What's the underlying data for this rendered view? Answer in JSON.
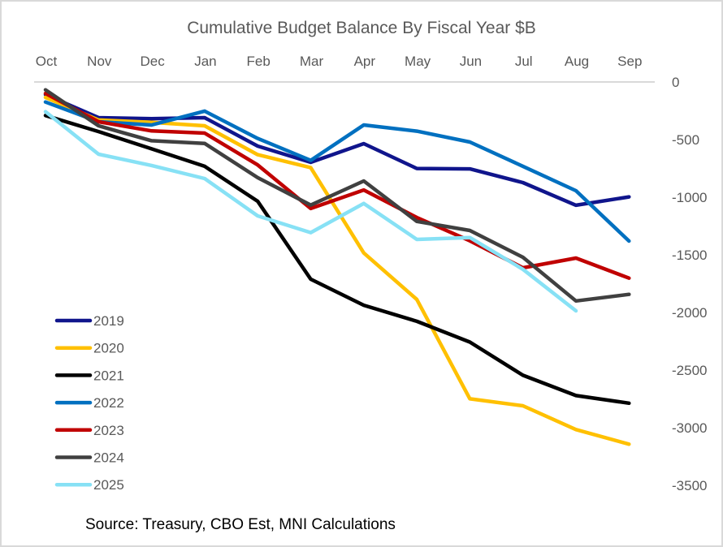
{
  "chart_data": {
    "type": "line",
    "title": "Cumulative Budget Balance By Fiscal Year $B",
    "xlabel": "",
    "ylabel": "",
    "x": [
      "Oct",
      "Nov",
      "Dec",
      "Jan",
      "Feb",
      "Mar",
      "Apr",
      "May",
      "Jun",
      "Jul",
      "Aug",
      "Sep"
    ],
    "ylim": [
      -3500,
      0
    ],
    "yticks": [
      0,
      -500,
      -1000,
      -1500,
      -2000,
      -2500,
      -3000,
      -3500
    ],
    "ytick_labels": [
      "0",
      "-500",
      "-1000",
      "-1500",
      "-2000",
      "-2500",
      "-3000",
      "-3500"
    ],
    "x_axis_position": "top",
    "y_axis_position": "right",
    "grid": false,
    "legend_position": "bottom-left",
    "series": [
      {
        "name": "2019",
        "color": "#10158c",
        "values": [
          -110,
          -310,
          -318,
          -310,
          -556,
          -697,
          -535,
          -751,
          -754,
          -873,
          -1070,
          -997
        ]
      },
      {
        "name": "2020",
        "color": "#ffc000",
        "values": [
          -134,
          -330,
          -350,
          -380,
          -631,
          -744,
          -1484,
          -1887,
          -2749,
          -2810,
          -3016,
          -3143
        ]
      },
      {
        "name": "2021",
        "color": "#000000",
        "values": [
          -291,
          -430,
          -580,
          -732,
          -1035,
          -1711,
          -1937,
          -2077,
          -2257,
          -2545,
          -2721,
          -2787
        ]
      },
      {
        "name": "2022",
        "color": "#0070c0",
        "values": [
          -174,
          -345,
          -373,
          -253,
          -490,
          -680,
          -373,
          -427,
          -521,
          -732,
          -944,
          -1380
        ]
      },
      {
        "name": "2023",
        "color": "#c00000",
        "values": [
          -99,
          -345,
          -425,
          -444,
          -720,
          -1098,
          -937,
          -1176,
          -1378,
          -1613,
          -1528,
          -1702
        ]
      },
      {
        "name": "2024",
        "color": "#404040",
        "values": [
          -68,
          -380,
          -510,
          -533,
          -830,
          -1068,
          -859,
          -1210,
          -1289,
          -1521,
          -1900,
          -1843
        ]
      },
      {
        "name": "2025",
        "color": "#87e1f5",
        "values": [
          -258,
          -627,
          -725,
          -838,
          -1162,
          -1307,
          -1054,
          -1366,
          -1350,
          -1625,
          -1986
        ]
      }
    ],
    "annotations": [
      "Source: Treasury, CBO Est, MNI Calculations"
    ]
  }
}
